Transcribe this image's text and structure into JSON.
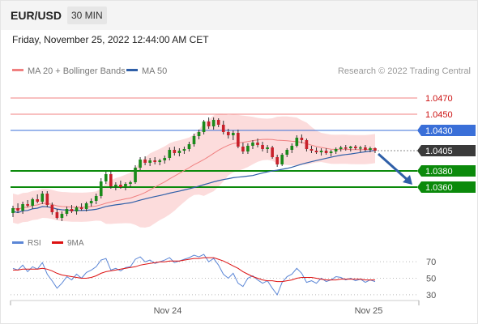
{
  "header": {
    "symbol": "EUR/USD",
    "timeframe": "30 MIN",
    "datetime": "Friday, November 25, 2022 12:44:00 AM CET"
  },
  "legend": {
    "ma20": "MA 20 + Bollinger Bands",
    "ma50": "MA 50",
    "credit": "Research © 2022 Trading Central"
  },
  "colors": {
    "bullish": "#1a8a1a",
    "bearish": "#c8202a",
    "resistance": "#f08080",
    "pivot": "#3a6fd8",
    "support": "#0b8a0b",
    "current_price": "#3a3a3a",
    "ma20": "#f08080",
    "ma50": "#2f5fa8",
    "bollinger_fill": "#fbd6d6",
    "rsi": "#5b86d6",
    "rsi_ma": "#dd1111",
    "arrow": "#2f5fa8"
  },
  "chart_data": [
    {
      "type": "candlestick",
      "y_range": [
        1.0315,
        1.0495
      ],
      "x_ticks": [
        "Nov 24",
        "Nov 25"
      ],
      "levels": [
        {
          "value": "1.0470",
          "kind": "resistance"
        },
        {
          "value": "1.0450",
          "kind": "resistance"
        },
        {
          "value": "1.0430",
          "kind": "pivot"
        },
        {
          "value": "1.0405",
          "kind": "current"
        },
        {
          "value": "1.0380",
          "kind": "support"
        },
        {
          "value": "1.0360",
          "kind": "support"
        }
      ],
      "series": [
        {
          "name": "MA 20 + Bollinger Bands",
          "kind": "ma20"
        },
        {
          "name": "MA 50",
          "kind": "ma50"
        }
      ],
      "candles": [
        [
          1.0328,
          1.0337,
          1.0323,
          1.0334
        ],
        [
          1.0334,
          1.034,
          1.0328,
          1.0331
        ],
        [
          1.0331,
          1.0342,
          1.0327,
          1.0339
        ],
        [
          1.0339,
          1.0344,
          1.0335,
          1.0337
        ],
        [
          1.0337,
          1.0347,
          1.0333,
          1.0345
        ],
        [
          1.0345,
          1.0351,
          1.034,
          1.0342
        ],
        [
          1.0342,
          1.0355,
          1.0339,
          1.0352
        ],
        [
          1.0352,
          1.0355,
          1.0335,
          1.0338
        ],
        [
          1.0338,
          1.0341,
          1.0326,
          1.0329
        ],
        [
          1.0329,
          1.0333,
          1.032,
          1.0322
        ],
        [
          1.0322,
          1.033,
          1.0318,
          1.0327
        ],
        [
          1.0327,
          1.0336,
          1.0324,
          1.0333
        ],
        [
          1.0333,
          1.0338,
          1.0328,
          1.033
        ],
        [
          1.033,
          1.0337,
          1.0326,
          1.0335
        ],
        [
          1.0335,
          1.034,
          1.0331,
          1.0333
        ],
        [
          1.0333,
          1.0342,
          1.033,
          1.034
        ],
        [
          1.034,
          1.0346,
          1.0336,
          1.0343
        ],
        [
          1.0343,
          1.0352,
          1.0339,
          1.0349
        ],
        [
          1.0349,
          1.0371,
          1.0346,
          1.0367
        ],
        [
          1.0367,
          1.0379,
          1.0364,
          1.0376
        ],
        [
          1.0376,
          1.038,
          1.0358,
          1.0361
        ],
        [
          1.0361,
          1.0366,
          1.0356,
          1.0363
        ],
        [
          1.0363,
          1.0368,
          1.0358,
          1.036
        ],
        [
          1.036,
          1.0366,
          1.0356,
          1.0364
        ],
        [
          1.0364,
          1.0368,
          1.036,
          1.0366
        ],
        [
          1.0366,
          1.0387,
          1.0364,
          1.0384
        ],
        [
          1.0384,
          1.0397,
          1.0381,
          1.0394
        ],
        [
          1.0394,
          1.0398,
          1.0387,
          1.039
        ],
        [
          1.039,
          1.0396,
          1.0386,
          1.0393
        ],
        [
          1.0393,
          1.0397,
          1.0388,
          1.0391
        ],
        [
          1.0391,
          1.0395,
          1.0387,
          1.0393
        ],
        [
          1.0393,
          1.0399,
          1.0389,
          1.0396
        ],
        [
          1.0396,
          1.0409,
          1.0393,
          1.0406
        ],
        [
          1.0406,
          1.041,
          1.0399,
          1.0402
        ],
        [
          1.0402,
          1.0408,
          1.0398,
          1.0405
        ],
        [
          1.0405,
          1.041,
          1.0401,
          1.0407
        ],
        [
          1.0407,
          1.0416,
          1.0404,
          1.0413
        ],
        [
          1.0413,
          1.0426,
          1.041,
          1.0423
        ],
        [
          1.0423,
          1.0431,
          1.0419,
          1.0428
        ],
        [
          1.0428,
          1.0443,
          1.0425,
          1.0441
        ],
        [
          1.0441,
          1.0446,
          1.0432,
          1.0435
        ],
        [
          1.0435,
          1.0446,
          1.0431,
          1.0443
        ],
        [
          1.0443,
          1.0445,
          1.0434,
          1.0437
        ],
        [
          1.0437,
          1.0442,
          1.0425,
          1.0428
        ],
        [
          1.0428,
          1.0432,
          1.042,
          1.0424
        ],
        [
          1.0424,
          1.043,
          1.0418,
          1.0427
        ],
        [
          1.0427,
          1.0431,
          1.0408,
          1.041
        ],
        [
          1.041,
          1.0415,
          1.0401,
          1.0404
        ],
        [
          1.0404,
          1.0414,
          1.0401,
          1.0411
        ],
        [
          1.0411,
          1.0418,
          1.0407,
          1.0415
        ],
        [
          1.0415,
          1.042,
          1.0409,
          1.0412
        ],
        [
          1.0412,
          1.0416,
          1.0404,
          1.0407
        ],
        [
          1.0407,
          1.0412,
          1.0402,
          1.0409
        ],
        [
          1.0409,
          1.0411,
          1.0395,
          1.0397
        ],
        [
          1.0397,
          1.04,
          1.0385,
          1.0388
        ],
        [
          1.0388,
          1.0402,
          1.0386,
          1.04
        ],
        [
          1.04,
          1.0408,
          1.0397,
          1.0406
        ],
        [
          1.0406,
          1.0414,
          1.0402,
          1.0411
        ],
        [
          1.0411,
          1.0424,
          1.0409,
          1.0421
        ],
        [
          1.0421,
          1.0425,
          1.0414,
          1.0418
        ],
        [
          1.0418,
          1.042,
          1.0404,
          1.0407
        ],
        [
          1.0407,
          1.0411,
          1.0402,
          1.0405
        ],
        [
          1.0405,
          1.0409,
          1.0401,
          1.0403
        ],
        [
          1.0403,
          1.0408,
          1.0399,
          1.0405
        ],
        [
          1.0405,
          1.0408,
          1.04,
          1.0402
        ],
        [
          1.0402,
          1.0406,
          1.0398,
          1.0404
        ],
        [
          1.0404,
          1.0409,
          1.0401,
          1.0407
        ],
        [
          1.0407,
          1.0411,
          1.0404,
          1.0409
        ],
        [
          1.0409,
          1.0412,
          1.0405,
          1.0408
        ],
        [
          1.0408,
          1.0411,
          1.0404,
          1.041
        ],
        [
          1.041,
          1.0412,
          1.0406,
          1.0408
        ],
        [
          1.0408,
          1.0411,
          1.0403,
          1.0409
        ],
        [
          1.0409,
          1.0412,
          1.0404,
          1.0406
        ],
        [
          1.0406,
          1.041,
          1.0403,
          1.0408
        ],
        [
          1.0408,
          1.0409,
          1.0402,
          1.0405
        ]
      ]
    },
    {
      "type": "line",
      "y_range": [
        25,
        80
      ],
      "y_ticks": [
        70,
        50,
        30
      ],
      "series": [
        {
          "name": "RSI",
          "kind": "rsi",
          "values": [
            62,
            60,
            66,
            58,
            64,
            61,
            69,
            55,
            47,
            38,
            44,
            52,
            48,
            55,
            50,
            57,
            60,
            64,
            72,
            74,
            60,
            62,
            59,
            63,
            64,
            73,
            76,
            70,
            72,
            68,
            70,
            72,
            75,
            69,
            71,
            73,
            75,
            78,
            76,
            79,
            70,
            74,
            66,
            55,
            50,
            56,
            44,
            40,
            50,
            53,
            48,
            44,
            47,
            38,
            30,
            45,
            52,
            55,
            62,
            56,
            45,
            47,
            44,
            50,
            46,
            48,
            52,
            51,
            48,
            50,
            47,
            49,
            45,
            48,
            46
          ]
        },
        {
          "name": "9MA",
          "kind": "rsi_ma",
          "values": [
            60,
            60,
            61,
            61,
            61,
            61,
            62,
            61,
            59,
            56,
            54,
            53,
            52,
            51,
            50,
            50,
            51,
            53,
            56,
            58,
            59,
            60,
            61,
            62,
            63,
            64,
            66,
            67,
            68,
            69,
            70,
            70,
            71,
            71,
            71,
            72,
            73,
            74,
            74,
            75,
            75,
            75,
            73,
            71,
            68,
            65,
            62,
            58,
            55,
            52,
            50,
            48,
            47,
            47,
            46,
            46,
            47,
            48,
            50,
            51,
            51,
            51,
            50,
            49,
            48,
            48,
            48,
            49,
            49,
            49,
            49,
            49,
            48,
            48,
            48
          ]
        }
      ]
    }
  ]
}
